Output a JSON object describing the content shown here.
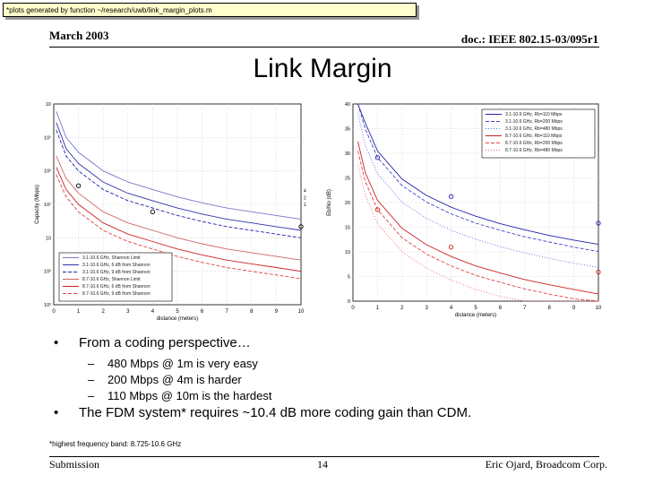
{
  "note": "*plots generated by function ~/research/uwb/link_margin_plots.m",
  "header": {
    "date": "March 2003",
    "doc": "doc.: IEEE 802.15-03/095r1"
  },
  "title": "Link Margin",
  "bullets": [
    {
      "text": "From a coding perspective…",
      "sub": [
        "480 Mbps @ 1m is very easy",
        "200 Mbps @ 4m is harder",
        "110 Mbps @ 10m is the hardest"
      ]
    },
    {
      "text": "The FDM system* requires ~10.4 dB more coding gain than CDM."
    }
  ],
  "bullet_glyph": "•",
  "dash_glyph": "–",
  "footnote": "*highest frequency band: 8.725-10.6 GHz",
  "footer": {
    "left": "Submission",
    "page": "14",
    "right": "Eric Ojard, Broadcom Corp."
  },
  "chart_data": [
    {
      "type": "line",
      "xlabel": "distance (meters)",
      "ylabel": "Capacity (Mbps)",
      "x_ticks": [
        "0",
        "1",
        "2",
        "3",
        "4",
        "5",
        "6",
        "7",
        "8",
        "9",
        "10"
      ],
      "y_ticks": [
        "10³",
        "10²",
        "10",
        "10¹",
        "10²",
        "10¹",
        "10"
      ],
      "ylim": [
        0.5,
        3.2
      ],
      "y_scale": "log",
      "grid": true,
      "legend_position": "bottom-left",
      "right_labels": [
        "4",
        "2",
        "1"
      ],
      "series": [
        {
          "name": "3.1-10.6 GHz, Shannon Limit",
          "color": "#7777cc",
          "style": "solid",
          "x": [
            0.1,
            0.5,
            1,
            2,
            3,
            4,
            5,
            6,
            7,
            8,
            9,
            10
          ],
          "y": [
            3.1,
            2.75,
            2.55,
            2.3,
            2.15,
            2.05,
            1.95,
            1.87,
            1.8,
            1.75,
            1.7,
            1.65
          ]
        },
        {
          "name": "3.1-10.6 GHz, 6 dB from Shannon",
          "color": "#3333aa",
          "style": "solid",
          "x": [
            0.1,
            0.5,
            1,
            2,
            3,
            4,
            5,
            6,
            7,
            8,
            9,
            10
          ],
          "y": [
            2.95,
            2.6,
            2.4,
            2.15,
            2.0,
            1.9,
            1.8,
            1.72,
            1.65,
            1.6,
            1.55,
            1.5
          ]
        },
        {
          "name": "3.1-10.6 GHz, 9 dB from Shannon",
          "color": "#2222aa",
          "style": "dashed",
          "x": [
            0.1,
            0.5,
            1,
            2,
            3,
            4,
            5,
            6,
            7,
            8,
            9,
            10
          ],
          "y": [
            2.85,
            2.5,
            2.3,
            2.05,
            1.9,
            1.8,
            1.7,
            1.62,
            1.55,
            1.5,
            1.45,
            1.4
          ]
        },
        {
          "name": "8.7-10.6 GHz, Shannon Limit",
          "color": "#cc6666",
          "style": "solid",
          "x": [
            0.1,
            0.5,
            1,
            2,
            3,
            4,
            5,
            6,
            7,
            8,
            9,
            10
          ],
          "y": [
            2.5,
            2.2,
            2.0,
            1.75,
            1.6,
            1.5,
            1.4,
            1.32,
            1.25,
            1.2,
            1.15,
            1.1
          ]
        },
        {
          "name": "8.7-10.6 GHz, 6 dB from Shannon",
          "color": "#cc2222",
          "style": "solid",
          "x": [
            0.1,
            0.5,
            1,
            2,
            3,
            4,
            5,
            6,
            7,
            8,
            9,
            10
          ],
          "y": [
            2.35,
            2.05,
            1.85,
            1.6,
            1.45,
            1.35,
            1.25,
            1.17,
            1.1,
            1.05,
            1.0,
            0.95
          ]
        },
        {
          "name": "8.7-10.6 GHz, 9 dB from Shannon",
          "color": "#dd4444",
          "style": "dashed",
          "x": [
            0.1,
            0.5,
            1,
            2,
            3,
            4,
            5,
            6,
            7,
            8,
            9,
            10
          ],
          "y": [
            2.25,
            1.95,
            1.75,
            1.5,
            1.35,
            1.25,
            1.15,
            1.07,
            1.0,
            0.95,
            0.9,
            0.85
          ]
        }
      ],
      "markers": [
        {
          "x": 1,
          "y": 2.1
        },
        {
          "x": 4,
          "y": 1.75
        },
        {
          "x": 10,
          "y": 1.55
        }
      ]
    },
    {
      "type": "line",
      "xlabel": "distance (meters)",
      "ylabel": "Eb/No (dB)",
      "x_ticks": [
        "0",
        "1",
        "2",
        "3",
        "4",
        "5",
        "6",
        "7",
        "8",
        "9",
        "10"
      ],
      "y_ticks": [
        "0",
        "5",
        "10",
        "15",
        "20",
        "25",
        "30",
        "35",
        "40"
      ],
      "xlim": [
        0,
        10
      ],
      "ylim": [
        0,
        42
      ],
      "grid": true,
      "legend_position": "top-right",
      "series": [
        {
          "name": "3.1-10.6 GHz, Rb=110 Mbps",
          "color": "#2222aa",
          "style": "solid",
          "x": [
            0.2,
            0.5,
            1,
            2,
            3,
            4,
            5,
            6,
            7,
            8,
            9,
            10
          ],
          "y": [
            44,
            38,
            32,
            26,
            22.5,
            20,
            18.1,
            16.5,
            15.2,
            14,
            13,
            12.1
          ]
        },
        {
          "name": "3.1-10.6 GHz, Rb=200 Mbps",
          "color": "#4444cc",
          "style": "dashed",
          "x": [
            0.2,
            0.5,
            1,
            2,
            3,
            4,
            5,
            6,
            7,
            8,
            9,
            10
          ],
          "y": [
            43,
            36.7,
            30.6,
            24.6,
            21.1,
            18.6,
            16.6,
            15.1,
            13.7,
            12.6,
            11.5,
            10.6
          ]
        },
        {
          "name": "3.1-10.6 GHz, Rb=480 Mbps",
          "color": "#6666dd",
          "style": "dotted",
          "x": [
            0.2,
            0.5,
            1,
            2,
            3,
            4,
            5,
            6,
            7,
            8,
            9,
            10
          ],
          "y": [
            40,
            33.2,
            27.2,
            21.1,
            17.6,
            15.1,
            13.2,
            11.6,
            10.3,
            9.1,
            8.1,
            7.2
          ]
        },
        {
          "name": "8.7-10.6 GHz, Rb=110 Mbps",
          "color": "#cc2222",
          "style": "solid",
          "x": [
            0.2,
            0.5,
            1,
            2,
            3,
            4,
            5,
            6,
            7,
            8,
            9,
            10
          ],
          "y": [
            34,
            27.4,
            21.5,
            15.5,
            12,
            9.5,
            7.5,
            6,
            4.6,
            3.5,
            2.5,
            1.5
          ]
        },
        {
          "name": "8.7-10.6 GHz, Rb=200 Mbps",
          "color": "#dd4444",
          "style": "dashed",
          "x": [
            0.2,
            0.5,
            1,
            2,
            3,
            4,
            5,
            6,
            7,
            8,
            9,
            10
          ],
          "y": [
            32,
            25.5,
            19.5,
            13.5,
            10,
            7.5,
            5.5,
            4,
            2.6,
            1.5,
            0.5,
            0
          ]
        },
        {
          "name": "8.7-10.6 GHz, Rb=480 Mbps",
          "color": "#ee6666",
          "style": "dotted",
          "x": [
            0.2,
            0.5,
            1,
            2,
            3,
            4,
            5,
            6,
            7,
            8,
            9,
            10
          ],
          "y": [
            29,
            22.5,
            16.5,
            10.5,
            7,
            4.5,
            2.5,
            1,
            0,
            0,
            0,
            0
          ]
        }
      ],
      "markers": [
        {
          "x": 1,
          "y": 30.6,
          "color": "#2222aa"
        },
        {
          "x": 4,
          "y": 22.3,
          "color": "#2222aa"
        },
        {
          "x": 10,
          "y": 16.6,
          "color": "#2222aa"
        },
        {
          "x": 1,
          "y": 19.5,
          "color": "#cc2222"
        },
        {
          "x": 4,
          "y": 11.5,
          "color": "#cc2222"
        },
        {
          "x": 10,
          "y": 6.2,
          "color": "#cc2222"
        }
      ]
    }
  ]
}
